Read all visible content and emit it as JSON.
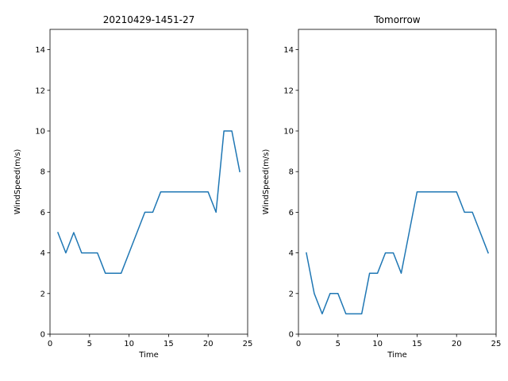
{
  "chart_data": [
    {
      "type": "line",
      "title": "20210429-1451-27",
      "xlabel": "Time",
      "ylabel": "WindSpeed(m/s)",
      "xlim": [
        0,
        25
      ],
      "ylim": [
        0,
        15
      ],
      "xticks": [
        0,
        5,
        10,
        15,
        20,
        25
      ],
      "yticks": [
        0,
        2,
        4,
        6,
        8,
        10,
        12,
        14
      ],
      "grid": false,
      "legend": "none",
      "series": [
        {
          "color": "#1f77b4",
          "x": [
            1,
            2,
            3,
            4,
            5,
            6,
            7,
            8,
            9,
            10,
            11,
            12,
            13,
            14,
            15,
            16,
            17,
            18,
            19,
            20,
            21,
            22,
            23,
            24
          ],
          "y": [
            5,
            4,
            5,
            4,
            4,
            4,
            3,
            3,
            3,
            4,
            5,
            6,
            6,
            7,
            7,
            7,
            7,
            7,
            7,
            7,
            6,
            10,
            10,
            8
          ]
        }
      ]
    },
    {
      "type": "line",
      "title": "Tomorrow",
      "xlabel": "Time",
      "ylabel": "WindSpeed(m/s)",
      "xlim": [
        0,
        25
      ],
      "ylim": [
        0,
        15
      ],
      "xticks": [
        0,
        5,
        10,
        15,
        20,
        25
      ],
      "yticks": [
        0,
        2,
        4,
        6,
        8,
        10,
        12,
        14
      ],
      "grid": false,
      "legend": "none",
      "series": [
        {
          "color": "#1f77b4",
          "x": [
            1,
            2,
            3,
            4,
            5,
            6,
            7,
            8,
            9,
            10,
            11,
            12,
            13,
            14,
            15,
            16,
            17,
            18,
            19,
            20,
            21,
            22,
            23,
            24
          ],
          "y": [
            4,
            2,
            1,
            2,
            2,
            1,
            1,
            1,
            3,
            3,
            4,
            4,
            3,
            5,
            7,
            7,
            7,
            7,
            7,
            7,
            6,
            6,
            5,
            4
          ]
        }
      ]
    }
  ]
}
